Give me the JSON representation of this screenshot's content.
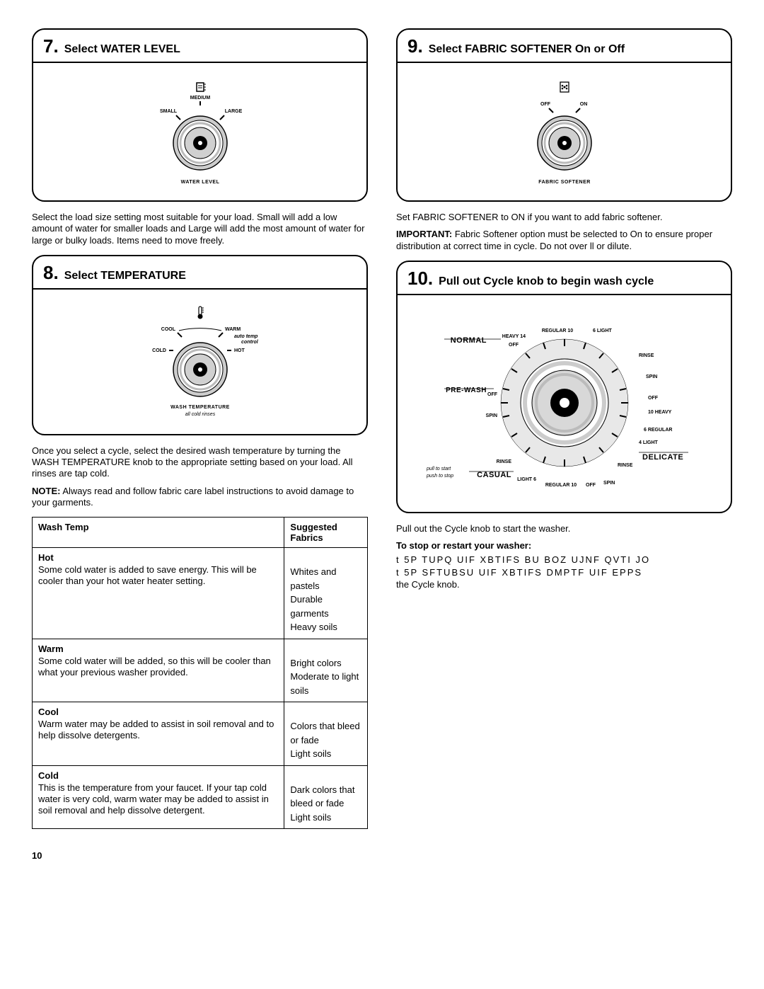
{
  "pageNumber": "10",
  "sections": {
    "s7": {
      "num": "7.",
      "title": "Select WATER LEVEL",
      "knob": {
        "topLabel": "MEDIUM",
        "leftLabel": "SMALL",
        "rightLabel": "LARGE",
        "bottomLabel": "WATER LEVEL"
      },
      "para": "Select the load size setting most suitable for your load. Small will add a low amount of water for smaller loads and Large will add the most amount of water for large or bulky loads. Items need to move freely."
    },
    "s8": {
      "num": "8.",
      "title": "Select TEMPERATURE",
      "knob": {
        "leftUpper": "COOL",
        "rightUpper": "WARM",
        "leftLower": "COLD",
        "rightLower": "HOT",
        "rightNote1": "auto temp",
        "rightNote2": "control",
        "bottomLabel": "WASH TEMPERATURE",
        "bottomItalic": "all cold rinses"
      },
      "para1": "Once you select a cycle, select the desired wash temperature by turning the WASH TEMPERATURE knob to the appropriate setting based on your load. All rinses are tap cold.",
      "noteLabel": "NOTE:",
      "para2": " Always read and follow fabric care label instructions to avoid damage to your garments.",
      "table": {
        "h1": "Wash Temp",
        "h2": "Suggested Fabrics",
        "rows": [
          {
            "head": "Hot",
            "body": "Some cold water is added to save energy. This will be cooler than your hot water heater setting.",
            "suggest": [
              "Whites and pastels",
              "Durable garments",
              "Heavy soils"
            ]
          },
          {
            "head": "Warm",
            "body": "Some cold water will be added, so this will be cooler than what your previous washer provided.",
            "suggest": [
              "Bright colors",
              "Moderate to light soils"
            ]
          },
          {
            "head": "Cool",
            "body": "Warm water may be added to assist in soil removal and to help dissolve detergents.",
            "suggest": [
              "Colors that bleed or fade",
              "Light soils"
            ]
          },
          {
            "head": "Cold",
            "body": "This is the temperature from your faucet. If your tap cold water is very cold, warm water may be added to assist in soil removal and help dissolve detergent.",
            "suggest": [
              "Dark colors that bleed or fade",
              "Light soils"
            ]
          }
        ]
      }
    },
    "s9": {
      "num": "9.",
      "title": "Select FABRIC SOFTENER On or Off",
      "knob": {
        "leftLabel": "OFF",
        "rightLabel": "ON",
        "bottomLabel": "FABRIC SOFTENER"
      },
      "para1": "Set FABRIC SOFTENER to ON if you want to add fabric softener.",
      "impLabel": "IMPORTANT:",
      "para2": " Fabric Softener option must be selected to  On  to ensure proper distribution at correct time in cycle. Do not over ll or dilute."
    },
    "s10": {
      "num": "10.",
      "title": "Pull out Cycle knob to begin wash cycle",
      "dial": {
        "normal": "NORMAL",
        "prewash": "PRE-WASH",
        "casual": "CASUAL",
        "delicate": "DELICATE",
        "pullStart": "pull to start",
        "pushStop": "push to stop",
        "labels": {
          "reg10": "REGULAR 10",
          "light6top": "6 LIGHT",
          "heavy14": "HEAVY 14",
          "rinse": "RINSE",
          "spin": "SPIN",
          "off": "OFF",
          "heavy10": "10 HEAVY",
          "reg6": "6 REGULAR",
          "light4": "4 LIGHT",
          "light6": "LIGHT 6",
          "reg10b": "REGULAR 10"
        }
      },
      "para1": "Pull out the Cycle knob to start the washer.",
      "sub": "To stop or restart your washer:",
      "b1": "t  5P TUPQ UIF XBTIFS BU BOZ UJNF  QVTI JO",
      "b2": "t  5P SFTUBSU UIF XBTIFS  DMPTF UIF EPPS",
      "b2tail": "the Cycle knob."
    }
  }
}
